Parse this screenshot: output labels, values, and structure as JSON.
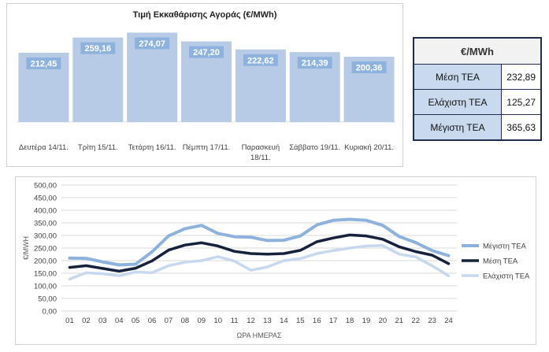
{
  "bar_chart": {
    "title": "Τιμή Εκκαθάρισης Αγοράς (€/MWh)"
  },
  "stats": {
    "header": "€/MWh",
    "rows": [
      {
        "label": "Μέση ΤΕΑ",
        "value": "232,89"
      },
      {
        "label": "Ελάχιστη ΤΕΑ",
        "value": "125,27"
      },
      {
        "label": "Μέγιστη ΤΕΑ",
        "value": "365,63"
      }
    ]
  },
  "colors": {
    "bar": "#b7cbe6",
    "bar_label_bg": "#8eb2de",
    "max_line": "#8eb2de",
    "avg_line": "#16213d",
    "min_line": "#c6d8ee"
  },
  "chart_data": [
    {
      "type": "bar",
      "title": "Τιμή Εκκαθάρισης Αγοράς (€/MWh)",
      "categories": [
        [
          "Δευτέρα 14/11."
        ],
        [
          "Τρίτη 15/11."
        ],
        [
          "Τετάρτη 16/11."
        ],
        [
          "Πέμπτη 17/11."
        ],
        [
          "Παρασκευή",
          "18/11."
        ],
        [
          "Σάββατο 19/11."
        ],
        [
          "Κυριακή 20/11."
        ]
      ],
      "values": [
        212.45,
        259.16,
        274.07,
        247.2,
        222.62,
        214.39,
        200.36
      ],
      "value_labels": [
        "212,45",
        "259,16",
        "274,07",
        "247,20",
        "222,62",
        "214,39",
        "200,36"
      ],
      "grid": false,
      "legend": false
    },
    {
      "type": "line",
      "xlabel": "ΩΡΑ ΗΜΕΡΑΣ",
      "ylabel": "€/MWH",
      "x": [
        "01",
        "02",
        "03",
        "04",
        "05",
        "06",
        "07",
        "08",
        "09",
        "10",
        "11",
        "12",
        "13",
        "14",
        "15",
        "16",
        "17",
        "18",
        "19",
        "20",
        "21",
        "22",
        "23",
        "24"
      ],
      "ylim": [
        0,
        500
      ],
      "yticks": [
        "0,00",
        "50,00",
        "100,00",
        "150,00",
        "200,00",
        "250,00",
        "300,00",
        "350,00",
        "400,00",
        "450,00",
        "500,00"
      ],
      "grid": true,
      "legend_position": "right",
      "series": [
        {
          "name": "Μέγιστη ΤΕΑ",
          "color": "#8eb2de",
          "values": [
            210,
            209,
            195,
            183,
            186,
            235,
            298,
            327,
            340,
            308,
            295,
            293,
            280,
            281,
            298,
            342,
            360,
            364,
            360,
            340,
            296,
            272,
            240,
            220
          ]
        },
        {
          "name": "Μέση ΤΕΑ",
          "color": "#16213d",
          "values": [
            173,
            180,
            169,
            158,
            170,
            199,
            242,
            262,
            271,
            258,
            237,
            228,
            226,
            228,
            241,
            275,
            290,
            302,
            298,
            285,
            255,
            236,
            222,
            188
          ]
        },
        {
          "name": "Ελάχιστη ΤΕΑ",
          "color": "#c6d8ee",
          "values": [
            127,
            152,
            148,
            140,
            155,
            152,
            180,
            194,
            200,
            216,
            198,
            162,
            175,
            200,
            208,
            228,
            240,
            250,
            258,
            260,
            226,
            215,
            180,
            140
          ]
        }
      ]
    }
  ]
}
